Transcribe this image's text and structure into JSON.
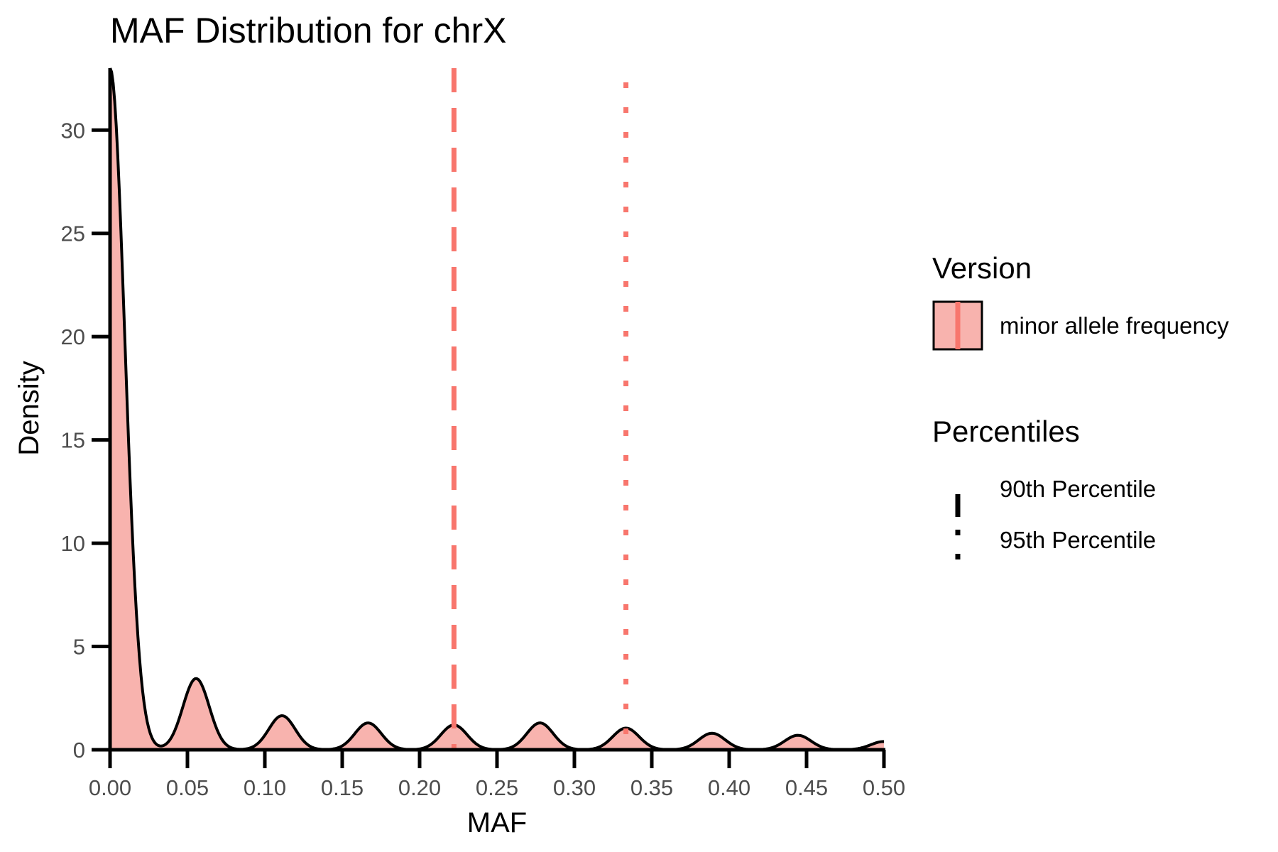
{
  "chart_data": {
    "type": "area",
    "title": "MAF Distribution for chrX",
    "xlabel": "MAF",
    "ylabel": "Density",
    "xlim": [
      0,
      0.5
    ],
    "ylim": [
      0,
      33
    ],
    "x_ticks": [
      "0.00",
      "0.05",
      "0.10",
      "0.15",
      "0.20",
      "0.25",
      "0.30",
      "0.35",
      "0.40",
      "0.45",
      "0.50"
    ],
    "y_ticks": [
      "0",
      "5",
      "10",
      "15",
      "20",
      "25",
      "30"
    ],
    "grid": false,
    "series": [
      {
        "name": "minor allele frequency",
        "fill": "#f8b3ae",
        "stroke": "#000000",
        "peaks": [
          {
            "x": 0.0,
            "y": 33.0
          },
          {
            "x": 0.0556,
            "y": 3.45
          },
          {
            "x": 0.1111,
            "y": 1.65
          },
          {
            "x": 0.1667,
            "y": 1.3
          },
          {
            "x": 0.2222,
            "y": 1.2
          },
          {
            "x": 0.2778,
            "y": 1.3
          },
          {
            "x": 0.3333,
            "y": 1.05
          },
          {
            "x": 0.3889,
            "y": 0.8
          },
          {
            "x": 0.4444,
            "y": 0.7
          },
          {
            "x": 0.5,
            "y": 0.4
          }
        ]
      }
    ],
    "percentile_lines": [
      {
        "name": "90th Percentile",
        "x": 0.2222,
        "style": "dashed",
        "color": "#f8766d"
      },
      {
        "name": "95th Percentile",
        "x": 0.3333,
        "style": "dotted",
        "color": "#f8766d"
      }
    ],
    "legend": {
      "placement": "right",
      "version_title": "Version",
      "version_label": "minor allele frequency",
      "percentiles_title": "Percentiles",
      "percentile_labels": [
        "90th Percentile",
        "95th Percentile"
      ]
    }
  }
}
